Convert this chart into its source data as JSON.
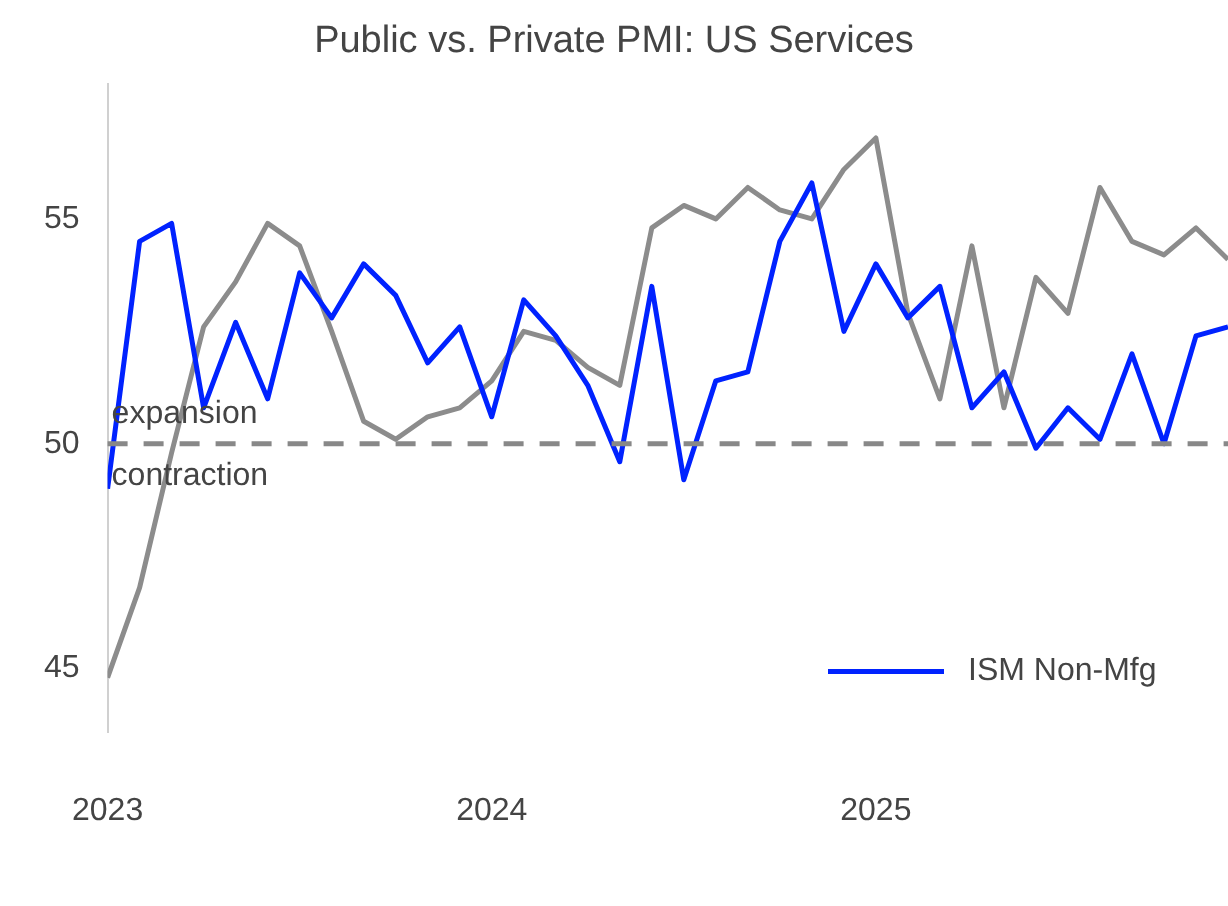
{
  "chart_data": {
    "type": "line",
    "title": "Public vs. Private PMI: US Services",
    "x": [
      "2023-01",
      "2023-02",
      "2023-03",
      "2023-04",
      "2023-05",
      "2023-06",
      "2023-07",
      "2023-08",
      "2023-09",
      "2023-10",
      "2023-11",
      "2023-12",
      "2024-01",
      "2024-02",
      "2024-03",
      "2024-04",
      "2024-05",
      "2024-06",
      "2024-07",
      "2024-08",
      "2024-09",
      "2024-10",
      "2024-11",
      "2024-12",
      "2025-01",
      "2025-02",
      "2025-03",
      "2025-04",
      "2025-05",
      "2025-06",
      "2025-07",
      "2025-08",
      "2025-09",
      "2025-10",
      "2025-11",
      "2025-12"
    ],
    "series": [
      {
        "name": "ISM Non-Mfg",
        "color": "#0022ff",
        "values": [
          49.0,
          54.5,
          54.9,
          50.8,
          52.7,
          51.0,
          53.8,
          52.8,
          54.0,
          53.3,
          51.8,
          52.6,
          50.6,
          53.2,
          52.4,
          51.3,
          49.6,
          53.5,
          49.2,
          51.4,
          51.6,
          54.5,
          55.8,
          52.5,
          54.0,
          52.8,
          53.5,
          50.8,
          51.6,
          49.9,
          50.8,
          50.1,
          52.0,
          50.0,
          52.4,
          52.6
        ]
      },
      {
        "color": "#8c8c8c",
        "values": [
          44.8,
          46.8,
          49.8,
          52.6,
          53.6,
          54.9,
          54.4,
          52.5,
          50.5,
          50.1,
          50.6,
          50.8,
          51.4,
          52.5,
          52.3,
          51.7,
          51.3,
          54.8,
          55.3,
          55.0,
          55.7,
          55.2,
          55.0,
          56.1,
          56.8,
          52.9,
          51.0,
          54.4,
          50.8,
          53.7,
          52.9,
          55.7,
          54.5,
          54.2,
          54.8,
          54.1
        ]
      }
    ],
    "xlim": [
      "2023-01",
      "2025-12"
    ],
    "xticks": [
      {
        "value": "2023-01",
        "label": "2023"
      },
      {
        "value": "2024-01",
        "label": "2024"
      },
      {
        "value": "2025-01",
        "label": "2025"
      }
    ],
    "ylim": [
      43.6,
      58
    ],
    "yticks": [
      45,
      50,
      55
    ],
    "ref_lines": [
      {
        "axis": "y",
        "value": 50,
        "color": "#888888",
        "line_style": "dashed"
      }
    ],
    "annotations": [
      {
        "text": "expansion",
        "x": "2023-01",
        "y": 50
      },
      {
        "text": "contraction",
        "x": "2023-01",
        "y": 50
      }
    ],
    "grid": false,
    "legend": "bottom right",
    "line_style": "solid",
    "marker": "none"
  }
}
